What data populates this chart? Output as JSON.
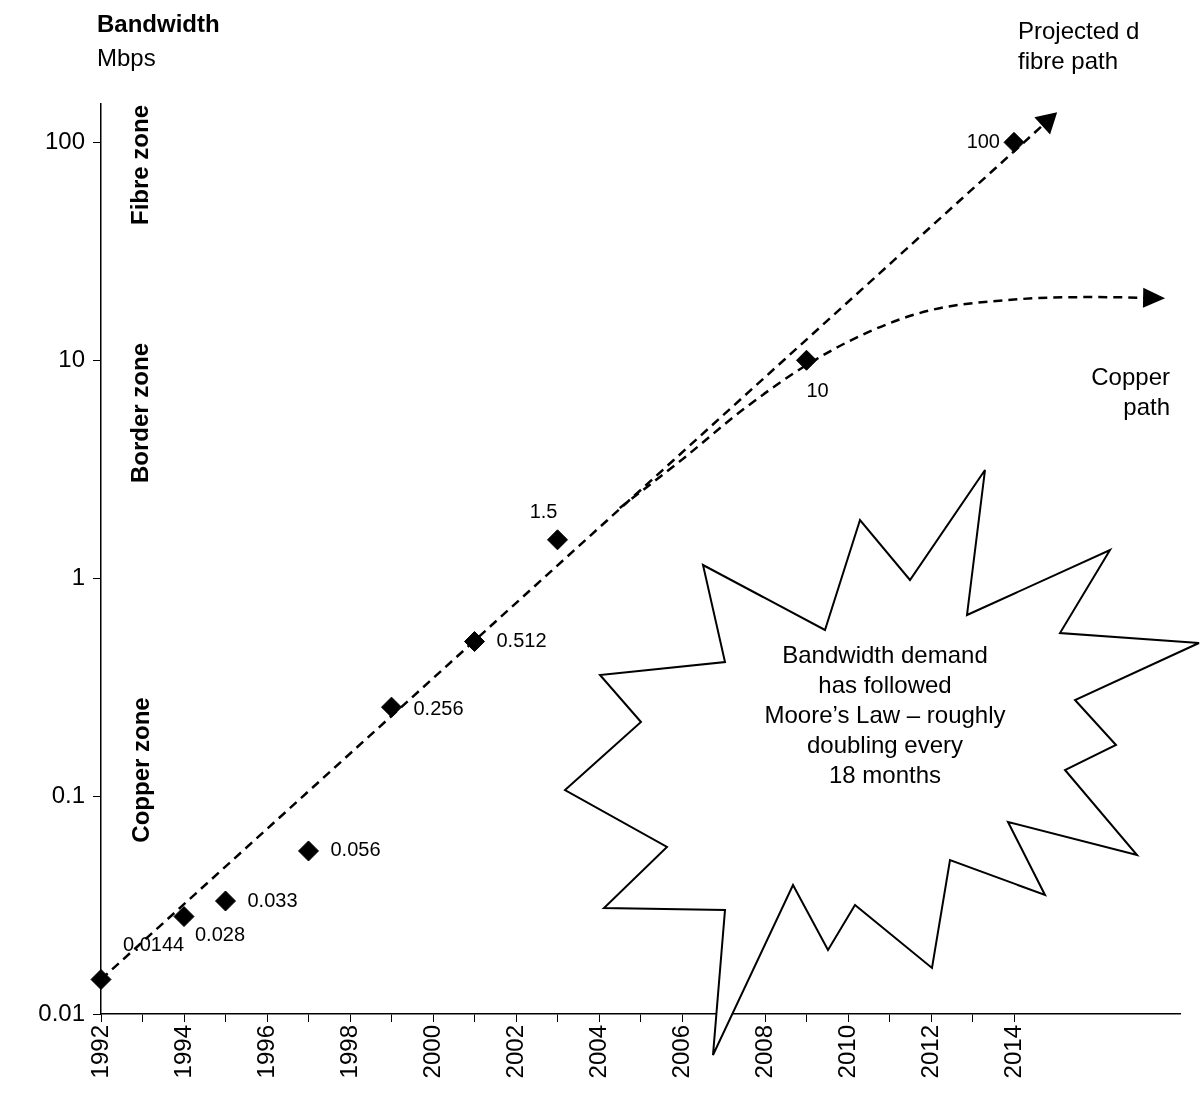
{
  "chart_data": {
    "type": "scatter",
    "ylabel": "Bandwidth",
    "subtitle": "Mbps",
    "log": "y",
    "grid": false,
    "legend": false,
    "xlim": [
      1992,
      2018
    ],
    "xticks": [
      1992,
      {
        "value": 1993,
        "label": null
      },
      1994,
      {
        "value": 1995,
        "label": null
      },
      1996,
      {
        "value": 1997,
        "label": null
      },
      1998,
      {
        "value": 1999,
        "label": null
      },
      2000,
      {
        "value": 2001,
        "label": null
      },
      2002,
      {
        "value": 2003,
        "label": null
      },
      2004,
      {
        "value": 2005,
        "label": null
      },
      2006,
      {
        "value": 2007,
        "label": null
      },
      2008,
      {
        "value": 2009,
        "label": null
      },
      2010,
      {
        "value": 2011,
        "label": null
      },
      2012,
      {
        "value": 2013,
        "label": null
      },
      2014
    ],
    "ylim": [
      0.01,
      150
    ],
    "yticks": [
      0.01,
      0.1,
      1,
      10,
      100
    ],
    "series": [
      {
        "color": "#000000",
        "marker": "diamond",
        "x": [
          1992,
          1994,
          1995,
          1997,
          1999,
          2001,
          2003,
          2009,
          2014
        ],
        "values": [
          0.0144,
          0.028,
          0.033,
          0.056,
          0.256,
          0.512,
          1.5,
          10,
          100
        ],
        "value_labels": [
          "0.0144",
          "0.028",
          "0.033",
          "0.056",
          "0.256",
          "0.512",
          "1.5",
          "10",
          "100"
        ]
      },
      {
        "type": "line",
        "color": "#000000",
        "marker": "triangle",
        "line_style": "dashed",
        "x": [
          1992,
          2014.8
        ],
        "values": [
          0.0144,
          125
        ]
      },
      {
        "type": "line",
        "color": "#000000",
        "marker": "none",
        "line_style": "dashed",
        "x": [
          2004.5,
          2006,
          2007.5,
          2009,
          2010.5,
          2012,
          2014,
          2016,
          2017.4
        ],
        "values": [
          2.1,
          3.5,
          6,
          9.5,
          13.5,
          17,
          19,
          19.5,
          19.3
        ]
      }
    ],
    "annotations": [
      "Fibre zone",
      "Border zone",
      "Copper zone",
      "Projected d\nfibre path",
      "Copper\npath",
      "Bandwidth demand\nhas followed\nMoore’s Law – roughly\ndoubling every\n18 months"
    ]
  }
}
